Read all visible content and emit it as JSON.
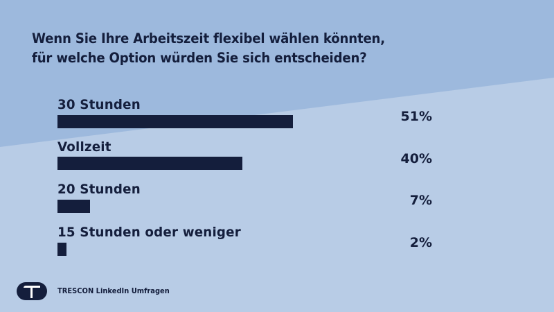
{
  "colors": {
    "background_upper": "#9DB9DD",
    "background_lower": "#B8CCE6",
    "bar": "#141E3C",
    "text": "#141E3C"
  },
  "chart_data": {
    "type": "bar",
    "orientation": "horizontal",
    "title": "Wenn Sie Ihre Arbeitszeit flexibel wählen könnten, für welche Option würden Sie sich entscheiden?",
    "title_lines": [
      "Wenn Sie Ihre Arbeitszeit flexibel wählen könnten,",
      "für welche Option würden Sie sich entscheiden?"
    ],
    "categories": [
      "30 Stunden",
      "Vollzeit",
      "20 Stunden",
      "15 Stunden oder weniger"
    ],
    "values": [
      51,
      40,
      7,
      2
    ],
    "value_labels": [
      "51%",
      "40%",
      "7%",
      "2%"
    ],
    "unit": "%",
    "xlim": [
      0,
      100
    ],
    "grid": false,
    "legend": "none"
  },
  "footer": {
    "logo_icon": "trescon-t-logo-icon",
    "source": "TRESCON LinkedIn Umfragen"
  }
}
